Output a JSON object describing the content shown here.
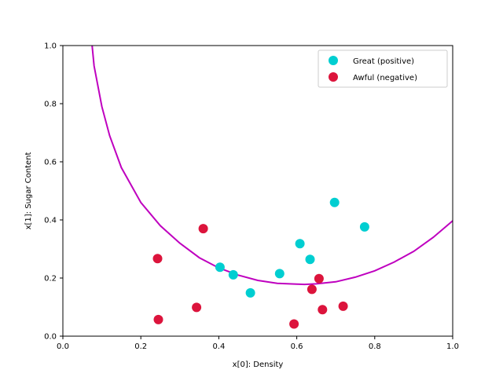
{
  "chart_data": {
    "type": "scatter",
    "title": "",
    "xlabel": "x[0]: Density",
    "ylabel": "x[1]: Sugar Content",
    "xlim": [
      0.0,
      1.0
    ],
    "ylim": [
      0.0,
      1.0
    ],
    "xticks": [
      "0.0",
      "0.2",
      "0.4",
      "0.6",
      "0.8",
      "1.0"
    ],
    "yticks": [
      "0.0",
      "0.2",
      "0.4",
      "0.6",
      "0.8",
      "1.0"
    ],
    "grid": false,
    "legend_position": "top-right",
    "series": [
      {
        "name": "Great (positive)",
        "color": "#00ced1",
        "points": [
          [
            0.403,
            0.237
          ],
          [
            0.437,
            0.211
          ],
          [
            0.481,
            0.149
          ],
          [
            0.556,
            0.215
          ],
          [
            0.608,
            0.318
          ],
          [
            0.634,
            0.264
          ],
          [
            0.697,
            0.46
          ],
          [
            0.774,
            0.376
          ]
        ]
      },
      {
        "name": "Awful (negative)",
        "color": "#dc143c",
        "points": [
          [
            0.243,
            0.267
          ],
          [
            0.245,
            0.057
          ],
          [
            0.343,
            0.099
          ],
          [
            0.36,
            0.37
          ],
          [
            0.593,
            0.042
          ],
          [
            0.639,
            0.161
          ],
          [
            0.657,
            0.198
          ],
          [
            0.666,
            0.091
          ],
          [
            0.719,
            0.103
          ]
        ]
      }
    ],
    "decision_boundary": {
      "color": "#bf00bf",
      "points": [
        [
          0.075,
          1.0
        ],
        [
          0.08,
          0.93
        ],
        [
          0.1,
          0.79
        ],
        [
          0.12,
          0.69
        ],
        [
          0.15,
          0.58
        ],
        [
          0.2,
          0.46
        ],
        [
          0.25,
          0.38
        ],
        [
          0.3,
          0.32
        ],
        [
          0.35,
          0.27
        ],
        [
          0.4,
          0.235
        ],
        [
          0.45,
          0.21
        ],
        [
          0.5,
          0.192
        ],
        [
          0.55,
          0.182
        ],
        [
          0.6,
          0.179
        ],
        [
          0.62,
          0.178
        ],
        [
          0.65,
          0.18
        ],
        [
          0.7,
          0.187
        ],
        [
          0.75,
          0.203
        ],
        [
          0.8,
          0.225
        ],
        [
          0.85,
          0.255
        ],
        [
          0.9,
          0.292
        ],
        [
          0.95,
          0.34
        ],
        [
          1.0,
          0.397
        ]
      ]
    }
  }
}
